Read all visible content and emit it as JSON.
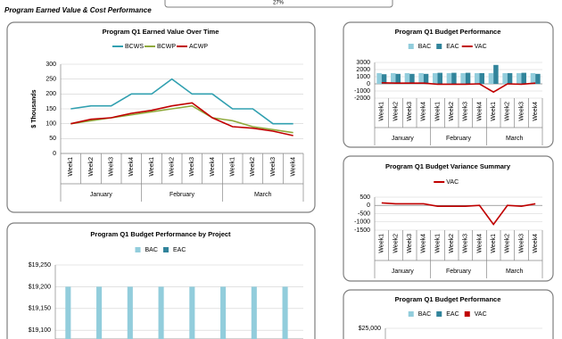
{
  "header": {
    "title": "Program Earned Value & Cost Performance",
    "percent": "27%"
  },
  "chart_data": [
    {
      "type": "line",
      "title": "Program Q1 Earned Value Over Time",
      "y_label": "$ Thousands",
      "categories": [
        "Week1",
        "Week2",
        "Week3",
        "Week4",
        "Week1",
        "Week2",
        "Week3",
        "Week4",
        "Week1",
        "Week2",
        "Week3",
        "Week4"
      ],
      "groups": [
        "January",
        "February",
        "March"
      ],
      "series": [
        {
          "name": "BCWS",
          "color": "#31a0b0",
          "values": [
            150,
            160,
            160,
            200,
            200,
            250,
            200,
            200,
            150,
            150,
            100,
            100
          ]
        },
        {
          "name": "BCWP",
          "color": "#8faa3c",
          "values": [
            100,
            110,
            120,
            130,
            140,
            150,
            160,
            120,
            110,
            90,
            80,
            70
          ]
        },
        {
          "name": "ACWP",
          "color": "#c00000",
          "values": [
            100,
            115,
            120,
            135,
            145,
            160,
            170,
            120,
            90,
            85,
            75,
            60
          ]
        }
      ],
      "ylim": [
        0,
        300
      ],
      "yticks": [
        0,
        50,
        100,
        150,
        200,
        250,
        300
      ],
      "grid": true,
      "legend": "top"
    },
    {
      "type": "bar",
      "title": "Program Q1 Budget Performance",
      "categories": [
        "Week1",
        "Week2",
        "Week3",
        "Week4",
        "Week1",
        "Week2",
        "Week3",
        "Week4",
        "Week1",
        "Week2",
        "Week3",
        "Week4"
      ],
      "groups": [
        "January",
        "February",
        "March"
      ],
      "series": [
        {
          "name": "BAC",
          "color": "#92cddc",
          "values": [
            1500,
            1500,
            1500,
            1500,
            1500,
            1500,
            1500,
            1500,
            1500,
            1500,
            1500,
            1500
          ]
        },
        {
          "name": "EAC",
          "color": "#31849b",
          "values": [
            1350,
            1400,
            1400,
            1400,
            1550,
            1550,
            1550,
            1500,
            2650,
            1500,
            1550,
            1400
          ]
        },
        {
          "name": "VAC",
          "color": "#c00000",
          "type": "line",
          "values": [
            150,
            100,
            100,
            100,
            -50,
            -50,
            -50,
            0,
            -1150,
            0,
            -50,
            100
          ]
        }
      ],
      "ylim": [
        -2000,
        3000
      ],
      "yticks": [
        -2000,
        -1000,
        0,
        1000,
        2000,
        3000
      ],
      "grid": true,
      "legend": "top"
    },
    {
      "type": "line",
      "title": "Program Q1 Budget Variance Summary",
      "categories": [
        "Week1",
        "Week2",
        "Week3",
        "Week4",
        "Week1",
        "Week2",
        "Week3",
        "Week4",
        "Week1",
        "Week2",
        "Week3",
        "Week4"
      ],
      "groups": [
        "January",
        "February",
        "March"
      ],
      "series": [
        {
          "name": "VAC",
          "color": "#c00000",
          "values": [
            150,
            100,
            100,
            100,
            -50,
            -50,
            -50,
            0,
            -1150,
            0,
            -50,
            100
          ]
        }
      ],
      "ylim": [
        -1500,
        500
      ],
      "yticks": [
        -1500,
        -1000,
        -500,
        0,
        500
      ],
      "grid": true,
      "legend": "top"
    },
    {
      "type": "bar",
      "title": "Program Q1 Budget Performance by Project",
      "categories": [
        null,
        null,
        null,
        null,
        null,
        null,
        null,
        null
      ],
      "series": [
        {
          "name": "BAC",
          "color": "#92cddc",
          "values": [
            19200,
            19200,
            19200,
            19200,
            19200,
            19200,
            19200,
            19200
          ]
        },
        {
          "name": "EAC",
          "color": "#31849b",
          "values": [
            null,
            null,
            null,
            null,
            null,
            null,
            null,
            null
          ]
        }
      ],
      "ylim": [
        19080,
        19250
      ],
      "yticks": [
        {
          "value": 19100,
          "label": "$19,100"
        },
        {
          "value": 19150,
          "label": "$19,150"
        },
        {
          "value": 19200,
          "label": "$19,200"
        },
        {
          "value": 19250,
          "label": "$19,250"
        }
      ],
      "grid": true,
      "legend": "top"
    },
    {
      "type": "bar",
      "title": "Program Q1 Budget Performance",
      "categories": [],
      "series": [
        {
          "name": "BAC",
          "color": "#92cddc",
          "values": []
        },
        {
          "name": "EAC",
          "color": "#31849b",
          "values": []
        },
        {
          "name": "VAC",
          "color": "#c00000",
          "values": []
        }
      ],
      "ylim": [
        23000,
        25000
      ],
      "yticks": [
        {
          "value": 25000,
          "label": "$25,000"
        }
      ],
      "grid": true,
      "legend": "top"
    }
  ]
}
